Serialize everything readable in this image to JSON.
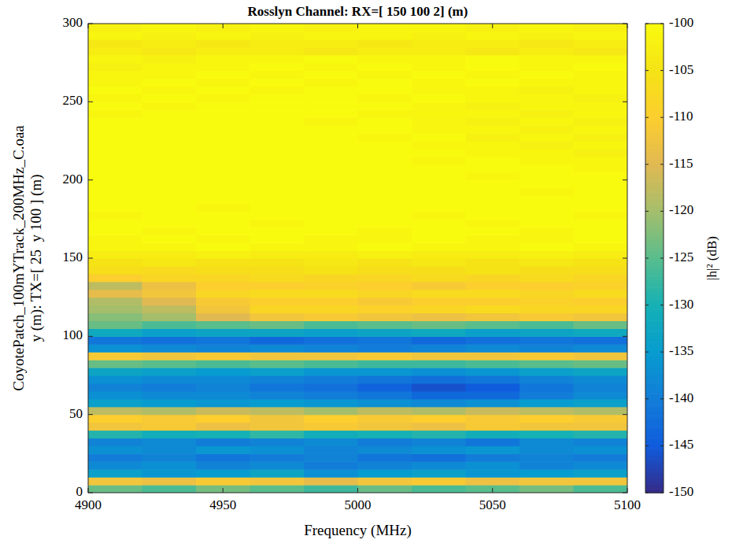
{
  "chart_data": {
    "type": "heatmap",
    "title": "Rosslyn Channel: RX=[ 150 100 2] (m)",
    "xlabel": "Frequency (MHz)",
    "ylabel": [
      "CoyotePatch_100mYTrack_200MHz_C.oaa",
      "y (m): TX=[ 25  y 100 ] (m)"
    ],
    "xlim": [
      4900,
      5100
    ],
    "xticks": [
      4900,
      4950,
      5000,
      5050,
      5100
    ],
    "ylim": [
      0,
      300
    ],
    "yticks": [
      0,
      50,
      100,
      150,
      200,
      250,
      300
    ],
    "grid": false,
    "x_edges": [
      4900,
      4920,
      4940,
      4960,
      4980,
      5000,
      5020,
      5040,
      5060,
      5080,
      5100
    ],
    "y_edges": [
      0,
      5,
      10,
      15,
      20,
      25,
      30,
      35,
      40,
      45,
      50,
      55,
      60,
      65,
      70,
      75,
      80,
      85,
      90,
      95,
      100,
      105,
      110,
      115,
      120,
      125,
      130,
      135,
      140,
      145,
      150,
      155,
      160,
      165,
      170,
      175,
      180,
      185,
      190,
      195,
      200,
      205,
      210,
      215,
      220,
      225,
      230,
      235,
      240,
      245,
      250,
      255,
      260,
      265,
      270,
      275,
      280,
      285,
      290,
      295,
      300
    ],
    "values": [
      [
        -124,
        -126,
        -123,
        -125,
        -127,
        -124,
        -126,
        -125,
        -123,
        -126
      ],
      [
        -112,
        -113,
        -111,
        -112,
        -114,
        -112,
        -111,
        -113,
        -112,
        -112
      ],
      [
        -134,
        -136,
        -135,
        -133,
        -137,
        -135,
        -134,
        -136,
        -135,
        -134
      ],
      [
        -138,
        -137,
        -139,
        -138,
        -140,
        -139,
        -138,
        -137,
        -139,
        -138
      ],
      [
        -140,
        -139,
        -141,
        -140,
        -139,
        -141,
        -142,
        -140,
        -139,
        -140
      ],
      [
        -137,
        -138,
        -136,
        -137,
        -139,
        -138,
        -137,
        -136,
        -138,
        -137
      ],
      [
        -139,
        -138,
        -140,
        -139,
        -138,
        -140,
        -139,
        -141,
        -138,
        -139
      ],
      [
        -129,
        -131,
        -130,
        -128,
        -131,
        -130,
        -129,
        -131,
        -130,
        -129
      ],
      [
        -112,
        -111,
        -113,
        -112,
        -111,
        -112,
        -113,
        -111,
        -112,
        -112
      ],
      [
        -110,
        -111,
        -110,
        -112,
        -110,
        -111,
        -110,
        -111,
        -110,
        -111
      ],
      [
        -118,
        -119,
        -117,
        -118,
        -120,
        -118,
        -119,
        -117,
        -118,
        -119
      ],
      [
        -134,
        -135,
        -136,
        -135,
        -136,
        -137,
        -138,
        -137,
        -135,
        -134
      ],
      [
        -137,
        -138,
        -138,
        -139,
        -140,
        -141,
        -143,
        -143,
        -140,
        -138
      ],
      [
        -139,
        -140,
        -139,
        -141,
        -142,
        -144,
        -146,
        -145,
        -141,
        -139
      ],
      [
        -137,
        -138,
        -138,
        -139,
        -140,
        -141,
        -142,
        -141,
        -139,
        -138
      ],
      [
        -133,
        -134,
        -135,
        -134,
        -136,
        -136,
        -137,
        -136,
        -134,
        -133
      ],
      [
        -124,
        -125,
        -126,
        -125,
        -126,
        -127,
        -127,
        -126,
        -125,
        -124
      ],
      [
        -111,
        -112,
        -111,
        -112,
        -112,
        -111,
        -112,
        -112,
        -111,
        -112
      ],
      [
        -137,
        -138,
        -139,
        -138,
        -139,
        -140,
        -139,
        -138,
        -139,
        -138
      ],
      [
        -141,
        -142,
        -141,
        -143,
        -142,
        -141,
        -143,
        -142,
        -141,
        -142
      ],
      [
        -132,
        -134,
        -133,
        -133,
        -134,
        -133,
        -132,
        -134,
        -133,
        -132
      ],
      [
        -124,
        -126,
        -125,
        -124,
        -126,
        -125,
        -124,
        -125,
        -126,
        -124
      ],
      [
        -122,
        -120,
        -115,
        -112,
        -111,
        -112,
        -113,
        -112,
        -111,
        -112
      ],
      [
        -120,
        -118,
        -112,
        -108,
        -108,
        -109,
        -108,
        -107,
        -108,
        -108
      ],
      [
        -119,
        -115,
        -111,
        -110,
        -110,
        -111,
        -110,
        -110,
        -109,
        -110
      ],
      [
        -114,
        -112,
        -108,
        -107,
        -107,
        -108,
        -107,
        -107,
        -108,
        -107
      ],
      [
        -118,
        -113,
        -110,
        -110,
        -109,
        -110,
        -111,
        -110,
        -110,
        -109
      ],
      [
        -110,
        -108,
        -108,
        -107,
        -108,
        -108,
        -107,
        -108,
        -107,
        -108
      ],
      [
        -106,
        -107,
        -106,
        -106,
        -105,
        -106,
        -106,
        -105,
        -106,
        -106
      ],
      [
        -105,
        -104,
        -105,
        -105,
        -104,
        -105,
        -104,
        -105,
        -104,
        -105
      ],
      [
        -103,
        -103,
        -102,
        -103,
        -103,
        -102,
        -103,
        -103,
        -102,
        -103
      ],
      [
        -101,
        -101,
        -100,
        -101,
        -101,
        -100,
        -101,
        -101,
        -100,
        -101
      ],
      [
        -101,
        -100,
        -101,
        -100,
        -101,
        -101,
        -100,
        -101,
        -101,
        -100
      ],
      [
        -100,
        -101,
        -100,
        -100,
        -100,
        -101,
        -100,
        -100,
        -101,
        -100
      ],
      [
        -100,
        -100,
        -100,
        -101,
        -100,
        -100,
        -100,
        -101,
        -100,
        -100
      ],
      [
        -101,
        -100,
        -100,
        -100,
        -100,
        -100,
        -101,
        -100,
        -100,
        -101
      ],
      [
        -100,
        -100,
        -101,
        -100,
        -100,
        -100,
        -100,
        -100,
        -100,
        -100
      ],
      [
        -100,
        -100,
        -100,
        -100,
        -100,
        -100,
        -100,
        -100,
        -100,
        -100
      ],
      [
        -100,
        -100,
        -100,
        -100,
        -100,
        -100,
        -100,
        -100,
        -101,
        -100
      ],
      [
        -100,
        -100,
        -100,
        -100,
        -100,
        -100,
        -100,
        -100,
        -100,
        -100
      ],
      [
        -100,
        -100,
        -100,
        -100,
        -100,
        -100,
        -100,
        -101,
        -100,
        -100
      ],
      [
        -100,
        -100,
        -100,
        -100,
        -100,
        -100,
        -100,
        -100,
        -100,
        -101
      ],
      [
        -100,
        -100,
        -100,
        -100,
        -100,
        -100,
        -101,
        -100,
        -101,
        -101
      ],
      [
        -100,
        -100,
        -100,
        -100,
        -100,
        -100,
        -100,
        -101,
        -101,
        -102
      ],
      [
        -100,
        -100,
        -100,
        -100,
        -100,
        -100,
        -101,
        -101,
        -102,
        -101
      ],
      [
        -100,
        -100,
        -100,
        -100,
        -100,
        -101,
        -100,
        -102,
        -101,
        -102
      ],
      [
        -100,
        -100,
        -100,
        -100,
        -100,
        -100,
        -101,
        -101,
        -102,
        -101
      ],
      [
        -100,
        -100,
        -100,
        -100,
        -101,
        -100,
        -101,
        -102,
        -101,
        -102
      ],
      [
        -101,
        -100,
        -100,
        -100,
        -100,
        -101,
        -101,
        -101,
        -102,
        -101
      ],
      [
        -100,
        -101,
        -100,
        -100,
        -100,
        -100,
        -101,
        -102,
        -101,
        -101
      ],
      [
        -101,
        -100,
        -101,
        -100,
        -100,
        -101,
        -100,
        -101,
        -101,
        -102
      ],
      [
        -100,
        -101,
        -100,
        -101,
        -100,
        -100,
        -101,
        -101,
        -102,
        -101
      ],
      [
        -101,
        -100,
        -101,
        -100,
        -101,
        -100,
        -101,
        -100,
        -101,
        -101
      ],
      [
        -101,
        -101,
        -100,
        -101,
        -100,
        -101,
        -100,
        -101,
        -100,
        -101
      ],
      [
        -102,
        -101,
        -101,
        -100,
        -101,
        -100,
        -101,
        -100,
        -101,
        -100
      ],
      [
        -101,
        -102,
        -101,
        -101,
        -100,
        -101,
        -101,
        -100,
        -101,
        -101
      ],
      [
        -103,
        -104,
        -103,
        -103,
        -104,
        -103,
        -103,
        -104,
        -103,
        -104
      ],
      [
        -104,
        -103,
        -104,
        -103,
        -103,
        -104,
        -103,
        -103,
        -104,
        -103
      ],
      [
        -101,
        -102,
        -101,
        -102,
        -101,
        -101,
        -102,
        -101,
        -102,
        -101
      ],
      [
        -102,
        -101,
        -102,
        -101,
        -102,
        -101,
        -101,
        -102,
        -101,
        -102
      ]
    ],
    "colorbar": {
      "label": "|h|² (dB)",
      "range": [
        -150,
        -100
      ],
      "ticks": [
        -150,
        -145,
        -140,
        -135,
        -130,
        -125,
        -120,
        -115,
        -110,
        -105,
        -100
      ]
    }
  }
}
